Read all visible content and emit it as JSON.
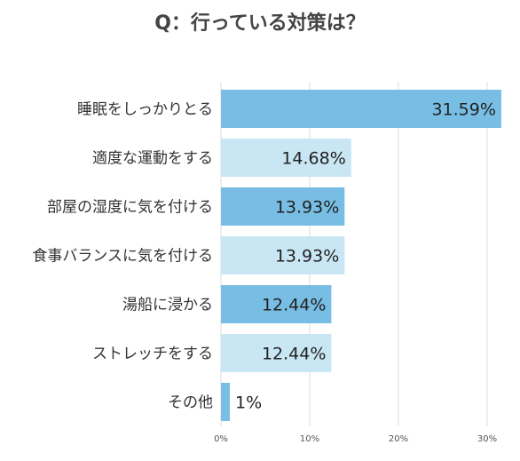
{
  "chart_data": {
    "type": "bar",
    "orientation": "horizontal",
    "title": "Q：行っている対策は？",
    "categories": [
      "睡眠をしっかりとる",
      "適度な運動をする",
      "部屋の湿度に気を付ける",
      "食事バランスに気を付ける",
      "湯船に浸かる",
      "ストレッチをする",
      "その他"
    ],
    "values": [
      31.59,
      14.68,
      13.93,
      13.93,
      12.44,
      12.44,
      1
    ],
    "value_labels": [
      "31.59%",
      "14.68%",
      "13.93%",
      "13.93%",
      "12.44%",
      "12.44%",
      "1%"
    ],
    "xlim": [
      0,
      32
    ],
    "ticks": [
      0,
      10,
      20,
      30
    ],
    "tick_labels": [
      "0%",
      "10%",
      "20%",
      "30%"
    ],
    "grid": true,
    "colors": {
      "bar_dark": "#78bde3",
      "bar_light": "#c9e6f4",
      "grid": "#dddddd",
      "title": "#444444",
      "text": "#333333"
    }
  }
}
